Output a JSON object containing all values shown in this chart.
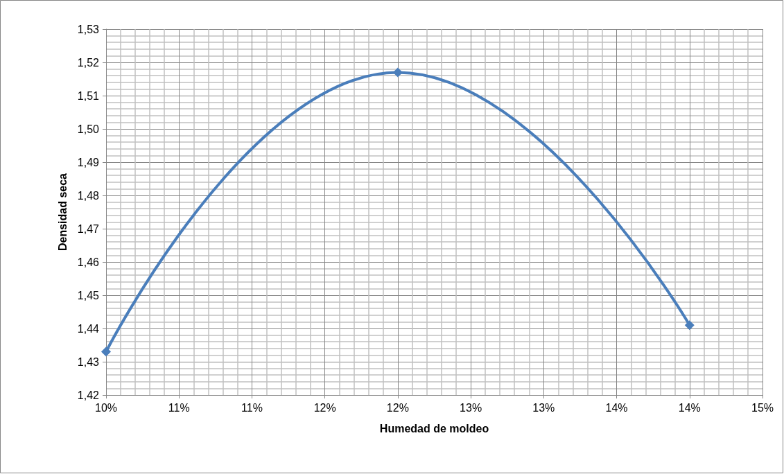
{
  "chart_data": {
    "type": "line",
    "xlabel": "Humedad de moldeo",
    "ylabel": "Densidad seca",
    "x": [
      0.1,
      0.12,
      0.14
    ],
    "series": [
      {
        "color": "#4a7ebb",
        "values": [
          1.433,
          1.517,
          1.441
        ]
      }
    ],
    "xlim": [
      0.1,
      0.145
    ],
    "xticks": [
      {
        "value": 0.1,
        "label": "10%"
      },
      {
        "value": 0.105,
        "label": "11%"
      },
      {
        "value": 0.11,
        "label": "11%"
      },
      {
        "value": 0.115,
        "label": "12%"
      },
      {
        "value": 0.12,
        "label": "12%"
      },
      {
        "value": 0.125,
        "label": "13%"
      },
      {
        "value": 0.13,
        "label": "13%"
      },
      {
        "value": 0.135,
        "label": "14%"
      },
      {
        "value": 0.14,
        "label": "14%"
      },
      {
        "value": 0.145,
        "label": "15%"
      }
    ],
    "ylim": [
      1.42,
      1.53
    ],
    "yticks": [
      {
        "value": 1.42,
        "label": "1,42"
      },
      {
        "value": 1.43,
        "label": "1,43"
      },
      {
        "value": 1.44,
        "label": "1,44"
      },
      {
        "value": 1.45,
        "label": "1,45"
      },
      {
        "value": 1.46,
        "label": "1,46"
      },
      {
        "value": 1.47,
        "label": "1,47"
      },
      {
        "value": 1.48,
        "label": "1,48"
      },
      {
        "value": 1.49,
        "label": "1,49"
      },
      {
        "value": 1.5,
        "label": "1,50"
      },
      {
        "value": 1.51,
        "label": "1,51"
      },
      {
        "value": 1.52,
        "label": "1,52"
      },
      {
        "value": 1.53,
        "label": "1,53"
      }
    ],
    "grid": true,
    "marker": "diamond",
    "line_style": "solid"
  }
}
